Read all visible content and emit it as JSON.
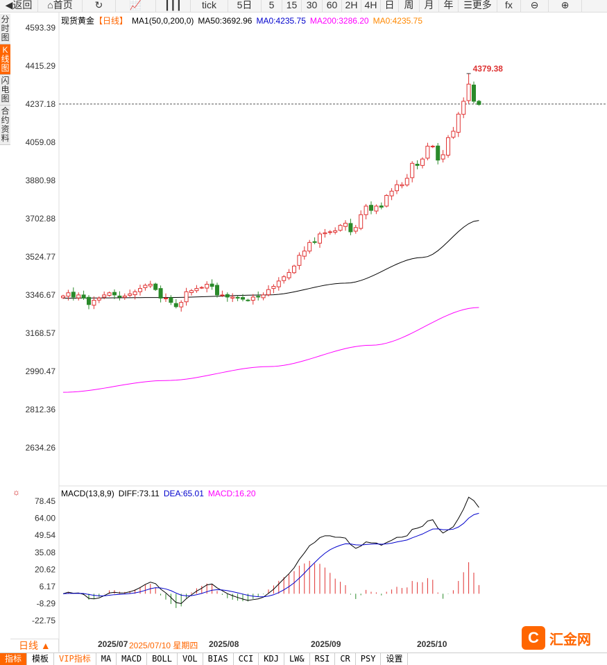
{
  "toolbar": {
    "items": [
      "返回",
      "首页",
      "刷新",
      "指标",
      "K线",
      "tick",
      "5日",
      "5",
      "15",
      "30",
      "60",
      "2H",
      "4H",
      "日",
      "周",
      "月",
      "年",
      "更多",
      "fx",
      "缩小",
      "放大"
    ],
    "labels": {
      "back": "◀返回",
      "home": "⌂首页",
      "refresh": "↻",
      "ind": "📈",
      "kline": "┃┃┃",
      "tick": "tick",
      "d5": "5日",
      "m5": "5",
      "m15": "15",
      "m30": "30",
      "m60": "60",
      "h2": "2H",
      "h4": "4H",
      "day": "日",
      "week": "周",
      "month": "月",
      "year": "年",
      "more": "☰更多",
      "fx": "fx",
      "zoomout": "⊖",
      "zoomin": "⊕"
    }
  },
  "side_tabs": [
    "分时图",
    "K线图",
    "闪电图",
    "合约资料"
  ],
  "legend": {
    "symbol": "现货黄金",
    "period": "【日线】",
    "ma_name": "MA1(50,0,200,0)",
    "ma50": "MA50:3692.96",
    "ma0a": "MA0:4235.75",
    "ma200": "MA200:3286.20",
    "ma0b": "MA0:4235.75"
  },
  "macd_legend": {
    "name": "MACD(13,8,9)",
    "diff": "DIFF:73.11",
    "dea": "DEA:65.01",
    "macd": "MACD:16.20"
  },
  "colors": {
    "up": "#e03030",
    "down": "#2a8a2a",
    "ma50": "#000000",
    "ma200": "#ff00ff",
    "accent": "#ff6600",
    "dea": "#0000cc"
  },
  "chart_data": {
    "type": "candlestick",
    "y_ticks": [
      "4593.39",
      "4415.29",
      "4237.18",
      "4059.08",
      "3880.98",
      "3702.88",
      "3524.77",
      "3346.67",
      "3168.57",
      "2990.47",
      "2812.36",
      "2634.26"
    ],
    "ylim": [
      2634.26,
      4593.39
    ],
    "high_label": "4379.38",
    "high_value": 4379.38,
    "current_price": 4237.18,
    "closes": [
      3340,
      3355,
      3335,
      3345,
      3330,
      3300,
      3320,
      3330,
      3345,
      3355,
      3345,
      3335,
      3340,
      3350,
      3360,
      3375,
      3390,
      3395,
      3370,
      3330,
      3330,
      3310,
      3290,
      3310,
      3360,
      3365,
      3375,
      3380,
      3395,
      3385,
      3345,
      3345,
      3335,
      3335,
      3330,
      3325,
      3320,
      3335,
      3335,
      3345,
      3370,
      3385,
      3410,
      3430,
      3450,
      3480,
      3530,
      3550,
      3590,
      3590,
      3630,
      3635,
      3640,
      3645,
      3670,
      3680,
      3640,
      3660,
      3720,
      3760,
      3740,
      3760,
      3755,
      3810,
      3830,
      3860,
      3860,
      3890,
      3960,
      3950,
      3980,
      4040,
      4040,
      3975,
      4000,
      4080,
      4110,
      4190,
      4250,
      4330,
      4250,
      4235
    ],
    "ma50_anchors": [
      [
        0,
        3330
      ],
      [
        20,
        3333
      ],
      [
        40,
        3345
      ],
      [
        55,
        3400
      ],
      [
        70,
        3520
      ],
      [
        81,
        3692.96
      ]
    ],
    "ma200_anchors": [
      [
        0,
        2890
      ],
      [
        20,
        2945
      ],
      [
        40,
        3010
      ],
      [
        60,
        3110
      ],
      [
        81,
        3286.2
      ]
    ],
    "x_labels": [
      "2025/07",
      "2025/08",
      "2025/09",
      "2025/10"
    ],
    "x_label_index": [
      0,
      24,
      45,
      67
    ],
    "macd_ticks": [
      "78.45",
      "64.00",
      "49.54",
      "35.08",
      "20.62",
      "6.17",
      "-8.29",
      "-22.75"
    ],
    "macd_ylim": [
      -22.75,
      78.45
    ]
  },
  "bottom": {
    "period": "日线 ▲",
    "cursor_date": "2025/07/10 星期四",
    "tabs": [
      "指标",
      "模板",
      "VIP指标",
      "MA",
      "MACD",
      "BOLL",
      "VOL",
      "BIAS",
      "CCI",
      "KDJ",
      "LW&",
      "RSI",
      "CR",
      "PSY",
      "设置"
    ]
  },
  "logo": {
    "name": "汇金网",
    "url": "www.gold678.com"
  }
}
